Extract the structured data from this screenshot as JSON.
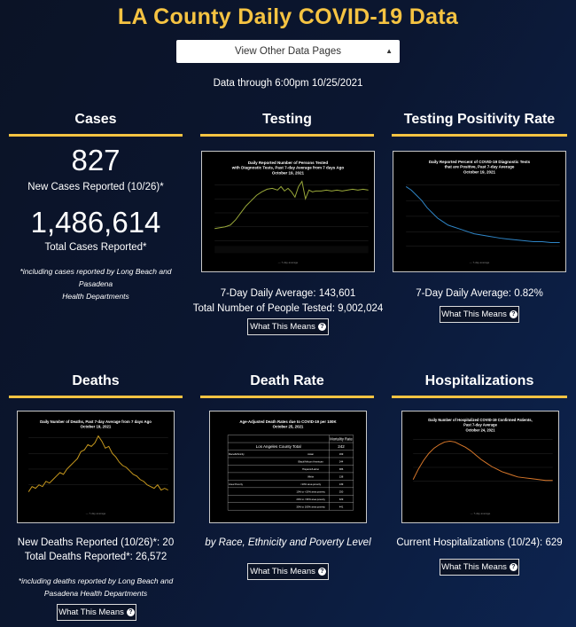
{
  "page": {
    "title": "LA County Daily COVID-19 Data",
    "select_label": "View Other Data Pages",
    "data_through": "Data through 6:00pm 10/25/2021"
  },
  "cases": {
    "heading": "Cases",
    "new_cases": "827",
    "new_cases_label": "New Cases Reported (10/26)*",
    "total_cases": "1,486,614",
    "total_cases_label": "Total Cases Reported*",
    "note_line1": "*including cases reported by Long Beach and Pasadena",
    "note_line2": "Health Departments"
  },
  "testing": {
    "heading": "Testing",
    "chart_title_l1": "Daily Reported Number of Persons Tested",
    "chart_title_l2": "with Diagnostic Tests, Past 7-day Average from 7 days Ago",
    "chart_title_l3": "October 19, 2021",
    "line1": "7-Day Daily Average: 143,601",
    "line2": "Total Number of People Tested: 9,002,024",
    "button": "What This Means",
    "line_color": "#9aa93a"
  },
  "positivity": {
    "heading": "Testing Positivity Rate",
    "chart_title_l1": "Daily Reported Percent of COVID-19 Diagnostic Tests",
    "chart_title_l2": "that are Positive, Past 7-day Average",
    "chart_title_l3": "October 19, 2021",
    "line1": "7-Day Daily Average: 0.82%",
    "button": "What This Means",
    "line_color": "#2f86c8"
  },
  "deaths": {
    "heading": "Deaths",
    "chart_title_l1": "Daily Number of Deaths, Past 7-day Average from 7 days Ago",
    "chart_title_l2": "October 19, 2021",
    "line1": "New Deaths Reported (10/26)*: 20",
    "line2": "Total Deaths Reported*: 26,572",
    "note_line1": "*including deaths reported by Long Beach and",
    "note_line2": "Pasadena Health Departments",
    "button": "What This Means",
    "line_color": "#c99a1e"
  },
  "death_rate": {
    "heading": "Death Rate",
    "chart_title_l1": "Age-Adjusted Death Rates due to COVID-19 per 100K",
    "chart_title_l2": "October 25, 2021",
    "table_header": "Mortality Rate",
    "table_total_label": "Los Angeles County Total",
    "table_total_value": "242",
    "rows": [
      {
        "group": "Race/Ethnicity",
        "label": "Asian",
        "value": "169"
      },
      {
        "group": "",
        "label": "Black/African American",
        "value": "244"
      },
      {
        "group": "",
        "label": "Hispanic/Latino",
        "value": "386"
      },
      {
        "group": "",
        "label": "White",
        "value": "138"
      },
      {
        "group": "Area Poverty",
        "label": "<10% area poverty",
        "value": "139"
      },
      {
        "group": "",
        "label": "10% to <20% area poverty",
        "value": "250"
      },
      {
        "group": "",
        "label": "20% to <30% area poverty",
        "value": "329"
      },
      {
        "group": "",
        "label": "30% to 100% area poverty",
        "value": "441"
      }
    ],
    "caption": "by Race, Ethnicity and Poverty Level",
    "button": "What This Means"
  },
  "hospitalizations": {
    "heading": "Hospitalizations",
    "chart_title_l1": "Daily Number of Hospitalized COVID-19 Confirmed Patients,",
    "chart_title_l2": "Past 7-day Average",
    "chart_title_l3": "October 24, 2021",
    "line1": "Current Hospitalizations (10/24): 629",
    "button": "What This Means",
    "line_color": "#d9782a"
  },
  "accent_color": "#f5c342"
}
